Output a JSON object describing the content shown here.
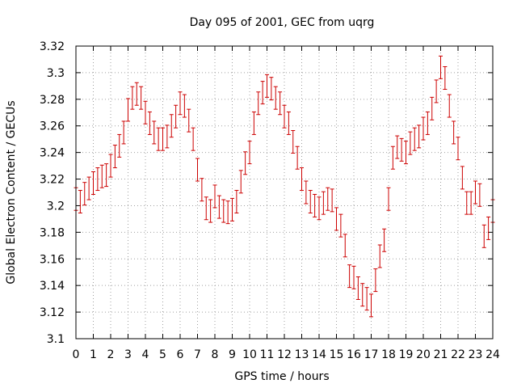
{
  "chart_data": {
    "type": "scatter",
    "title": "Day 095 of 2001, GEC from uqrg",
    "xlabel": "GPS time / hours",
    "ylabel": "Global Electron Content / GECUs",
    "xlim": [
      0,
      24
    ],
    "ylim": [
      3.1,
      3.32
    ],
    "grid": true,
    "x_ticks": [
      0,
      1,
      2,
      3,
      4,
      5,
      6,
      7,
      8,
      9,
      10,
      11,
      12,
      13,
      14,
      15,
      16,
      17,
      18,
      19,
      20,
      21,
      22,
      23,
      24
    ],
    "x_tick_labels": [
      "0",
      "1",
      "2",
      "3",
      "4",
      "5",
      "6",
      "7",
      "8",
      "9",
      "10",
      "11",
      "12",
      "13",
      "14",
      "15",
      "16",
      "17",
      "18",
      "19",
      "20",
      "21",
      "22",
      "23",
      "24"
    ],
    "y_ticks": [
      3.1,
      3.12,
      3.14,
      3.16,
      3.18,
      3.2,
      3.22,
      3.24,
      3.26,
      3.28,
      3.3,
      3.32
    ],
    "y_tick_labels": [
      "3.1",
      "3.12",
      "3.14",
      "3.16",
      "3.18",
      "3.2",
      "3.22",
      "3.24",
      "3.26",
      "3.28",
      "3.3",
      "3.32"
    ],
    "series_color": "#cc0000",
    "error_half_width": 0.0085,
    "x": [
      0.0,
      0.25,
      0.5,
      0.75,
      1.0,
      1.25,
      1.5,
      1.75,
      2.0,
      2.25,
      2.5,
      2.75,
      3.0,
      3.25,
      3.5,
      3.75,
      4.0,
      4.25,
      4.5,
      4.75,
      5.0,
      5.25,
      5.5,
      5.75,
      6.0,
      6.25,
      6.5,
      6.75,
      7.0,
      7.25,
      7.5,
      7.75,
      8.0,
      8.25,
      8.5,
      8.75,
      9.0,
      9.25,
      9.5,
      9.75,
      10.0,
      10.25,
      10.5,
      10.75,
      11.0,
      11.25,
      11.5,
      11.75,
      12.0,
      12.25,
      12.5,
      12.75,
      13.0,
      13.25,
      13.5,
      13.75,
      14.0,
      14.25,
      14.5,
      14.75,
      15.0,
      15.25,
      15.5,
      15.75,
      16.0,
      16.25,
      16.5,
      16.75,
      17.0,
      17.25,
      17.5,
      17.75,
      18.0,
      18.25,
      18.5,
      18.75,
      19.0,
      19.25,
      19.5,
      19.75,
      20.0,
      20.25,
      20.5,
      20.75,
      21.0,
      21.25,
      21.5,
      21.75,
      22.0,
      22.25,
      22.5,
      22.75,
      23.0,
      23.25,
      23.5,
      23.75,
      24.0
    ],
    "y": [
      3.205,
      3.203,
      3.209,
      3.213,
      3.217,
      3.22,
      3.222,
      3.223,
      3.23,
      3.237,
      3.245,
      3.255,
      3.272,
      3.281,
      3.284,
      3.281,
      3.27,
      3.262,
      3.255,
      3.25,
      3.25,
      3.252,
      3.26,
      3.267,
      3.277,
      3.275,
      3.264,
      3.25,
      3.227,
      3.212,
      3.198,
      3.196,
      3.207,
      3.199,
      3.196,
      3.195,
      3.197,
      3.203,
      3.218,
      3.232,
      3.24,
      3.262,
      3.277,
      3.285,
      3.29,
      3.288,
      3.281,
      3.277,
      3.267,
      3.262,
      3.248,
      3.236,
      3.22,
      3.21,
      3.203,
      3.2,
      3.198,
      3.202,
      3.205,
      3.204,
      3.19,
      3.185,
      3.17,
      3.147,
      3.146,
      3.138,
      3.133,
      3.13,
      3.125,
      3.144,
      3.162,
      3.174,
      3.205,
      3.236,
      3.244,
      3.242,
      3.24,
      3.247,
      3.25,
      3.252,
      3.258,
      3.262,
      3.273,
      3.286,
      3.304,
      3.296,
      3.275,
      3.255,
      3.243,
      3.221,
      3.202,
      3.202,
      3.21,
      3.208,
      3.177,
      3.183,
      3.196
    ]
  }
}
